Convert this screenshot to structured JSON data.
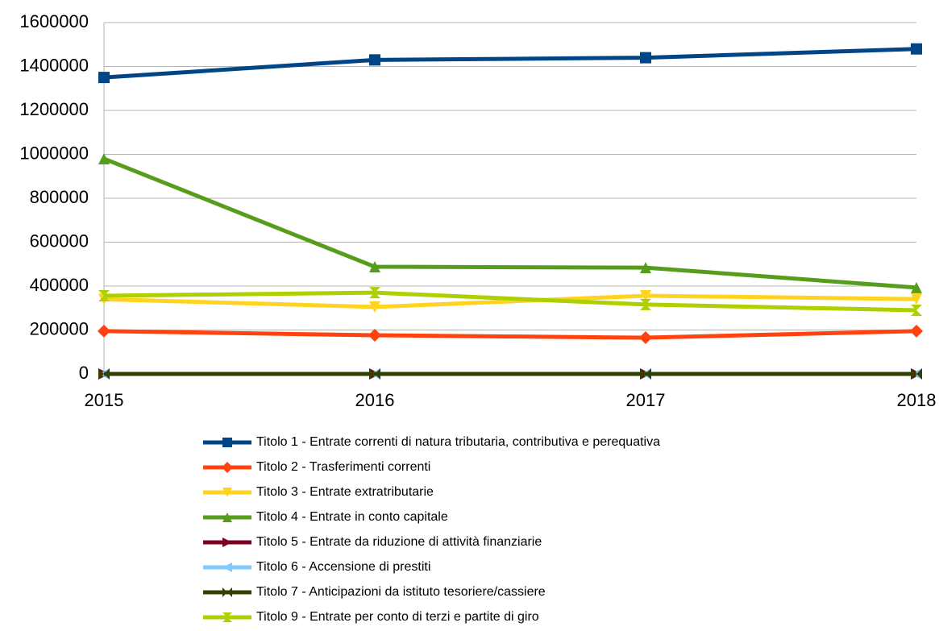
{
  "chart_data": {
    "type": "line",
    "categories": [
      "2015",
      "2016",
      "2017",
      "2018"
    ],
    "ylim": [
      0,
      1600000
    ],
    "yticks": [
      0,
      200000,
      400000,
      600000,
      800000,
      1000000,
      1200000,
      1400000,
      1600000
    ],
    "grid": true,
    "legend": "bottom",
    "series": [
      {
        "name": "Titolo 1 - Entrate correnti di natura tributaria, contributiva e perequativa",
        "color": "#004586",
        "marker": "square",
        "values": [
          1350000,
          1430000,
          1440000,
          1480000
        ]
      },
      {
        "name": "Titolo 2 - Trasferimenti correnti",
        "color": "#ff420e",
        "marker": "diamond",
        "values": [
          195000,
          176000,
          165000,
          195000
        ]
      },
      {
        "name": "Titolo 3 - Entrate extratributarie",
        "color": "#ffd320",
        "marker": "triangle-down",
        "values": [
          340000,
          305000,
          356000,
          341000
        ]
      },
      {
        "name": "Titolo 4 - Entrate in conto capitale",
        "color": "#579d1c",
        "marker": "triangle-up",
        "values": [
          980000,
          488000,
          484000,
          393000
        ]
      },
      {
        "name": "Titolo 5 - Entrate da riduzione di attività finanziarie",
        "color": "#7e0021",
        "marker": "triangle-right",
        "values": [
          0,
          0,
          0,
          0
        ]
      },
      {
        "name": "Titolo 6 - Accensione di prestiti",
        "color": "#83caff",
        "marker": "triangle-left",
        "values": [
          0,
          0,
          0,
          0
        ]
      },
      {
        "name": "Titolo 7 - Anticipazioni da istituto tesoriere/cassiere",
        "color": "#314004",
        "marker": "bowtie",
        "values": [
          0,
          0,
          0,
          0
        ]
      },
      {
        "name": "Titolo 9 - Entrate per conto di terzi e partite di giro",
        "color": "#aecf00",
        "marker": "hourglass",
        "values": [
          356000,
          370000,
          316000,
          290000
        ]
      }
    ]
  }
}
